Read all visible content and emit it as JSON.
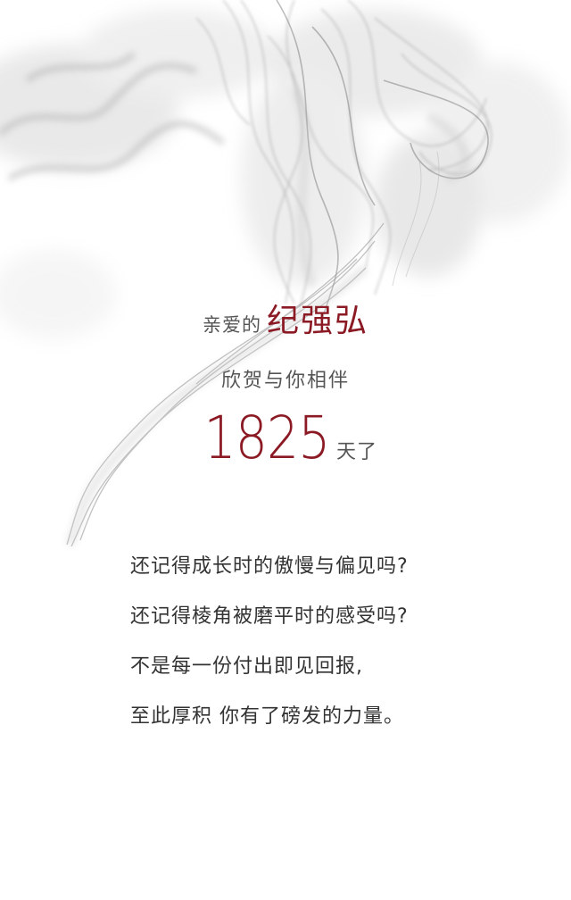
{
  "greeting": {
    "prefix": "亲爱的",
    "name": "纪强弘"
  },
  "subtitle": "欣贺与你相伴",
  "days": {
    "number": "1825",
    "suffix": "天了"
  },
  "verses": [
    "还记得成长时的傲慢与偏见吗?",
    "还记得棱角被磨平时的感受吗?",
    "不是每一份付出即见回报,",
    "至此厚积 你有了磅发的力量。"
  ],
  "colors": {
    "accent": "#8b1a24",
    "text": "#333333",
    "muted": "#555555",
    "smoke": "#9a9a9a",
    "background": "#ffffff"
  }
}
